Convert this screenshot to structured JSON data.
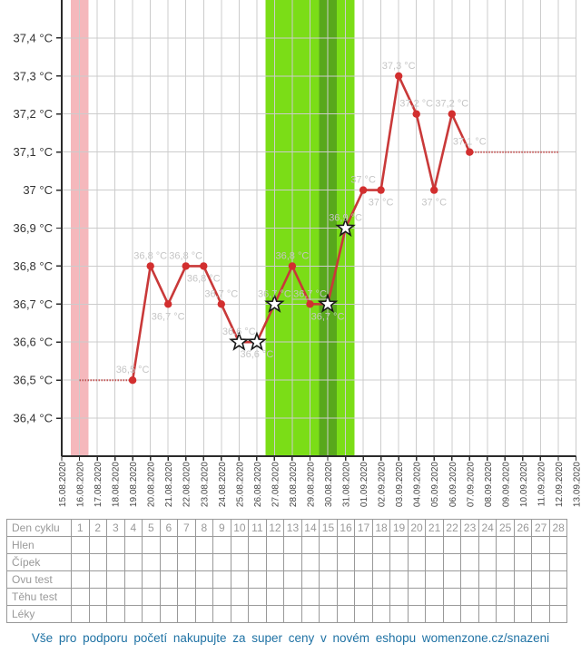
{
  "chart_data": {
    "type": "line",
    "title": "",
    "unit": "°C",
    "grid": true,
    "y_axis": {
      "min": 36.3,
      "max": 37.5,
      "ticks": [
        {
          "value": 37.4,
          "label": "37,4 °C"
        },
        {
          "value": 37.3,
          "label": "37,3 °C"
        },
        {
          "value": 37.2,
          "label": "37,2 °C"
        },
        {
          "value": 37.1,
          "label": "37,1 °C"
        },
        {
          "value": 37.0,
          "label": "37 °C"
        },
        {
          "value": 36.9,
          "label": "36,9 °C"
        },
        {
          "value": 36.8,
          "label": "36,8 °C"
        },
        {
          "value": 36.7,
          "label": "36,7 °C"
        },
        {
          "value": 36.6,
          "label": "36,6 °C"
        },
        {
          "value": 36.5,
          "label": "36,5 °C"
        },
        {
          "value": 36.4,
          "label": "36,4 °C"
        }
      ]
    },
    "x_axis": {
      "dates": [
        "15.08.2020",
        "16.08.2020",
        "17.08.2020",
        "18.08.2020",
        "19.08.2020",
        "20.08.2020",
        "21.08.2020",
        "22.08.2020",
        "23.08.2020",
        "24.08.2020",
        "25.08.2020",
        "26.08.2020",
        "27.08.2020",
        "28.08.2020",
        "29.08.2020",
        "30.08.2020",
        "31.08.2020",
        "01.09.2020",
        "02.09.2020",
        "03.09.2020",
        "04.09.2020",
        "05.09.2020",
        "06.09.2020",
        "07.09.2020",
        "08.09.2020",
        "09.09.2020",
        "10.09.2020",
        "11.09.2020",
        "12.09.2020",
        "13.09.2020"
      ]
    },
    "points": [
      {
        "date": "19.08.2020",
        "index": 4,
        "cycle_day": 4,
        "value": 36.5,
        "label": "36,5 °C",
        "marker": "dot",
        "label_pos": "above",
        "underline": false
      },
      {
        "date": "20.08.2020",
        "index": 5,
        "cycle_day": 5,
        "value": 36.8,
        "label": "36,8 °C",
        "marker": "dot",
        "label_pos": "above",
        "underline": false
      },
      {
        "date": "21.08.2020",
        "index": 6,
        "cycle_day": 6,
        "value": 36.7,
        "label": "36,7 °C",
        "marker": "dot",
        "label_pos": "below",
        "underline": false
      },
      {
        "date": "22.08.2020",
        "index": 7,
        "cycle_day": 7,
        "value": 36.8,
        "label": "36,8 °C",
        "marker": "dot",
        "label_pos": "above",
        "underline": false
      },
      {
        "date": "23.08.2020",
        "index": 8,
        "cycle_day": 8,
        "value": 36.8,
        "label": "36,8 °C",
        "marker": "dot",
        "label_pos": "below",
        "underline": false
      },
      {
        "date": "24.08.2020",
        "index": 9,
        "cycle_day": 9,
        "value": 36.7,
        "label": "36,7 °C",
        "marker": "dot",
        "label_pos": "above",
        "underline": false
      },
      {
        "date": "25.08.2020",
        "index": 10,
        "cycle_day": 10,
        "value": 36.6,
        "label": "36,6 °C",
        "marker": "star",
        "label_pos": "above",
        "underline": false
      },
      {
        "date": "26.08.2020",
        "index": 11,
        "cycle_day": 11,
        "value": 36.6,
        "label": "36,6 °C",
        "marker": "star",
        "label_pos": "below",
        "underline": false
      },
      {
        "date": "27.08.2020",
        "index": 12,
        "cycle_day": 12,
        "value": 36.7,
        "label": "36,7 °C",
        "marker": "star",
        "label_pos": "above",
        "underline": false
      },
      {
        "date": "28.08.2020",
        "index": 13,
        "cycle_day": 13,
        "value": 36.8,
        "label": "36,8 °C",
        "marker": "dot",
        "label_pos": "above",
        "underline": false
      },
      {
        "date": "29.08.2020",
        "index": 14,
        "cycle_day": 14,
        "value": 36.7,
        "label": "36,7 °C",
        "marker": "dot",
        "label_pos": "above",
        "underline": true
      },
      {
        "date": "30.08.2020",
        "index": 15,
        "cycle_day": 15,
        "value": 36.7,
        "label": "36,7 °C",
        "marker": "star",
        "label_pos": "below",
        "underline": false
      },
      {
        "date": "31.08.2020",
        "index": 16,
        "cycle_day": 16,
        "value": 36.9,
        "label": "36,9 °C",
        "marker": "star",
        "label_pos": "above",
        "underline": false
      },
      {
        "date": "01.09.2020",
        "index": 17,
        "cycle_day": 17,
        "value": 37.0,
        "label": "37 °C",
        "marker": "dot",
        "label_pos": "above",
        "underline": false
      },
      {
        "date": "02.09.2020",
        "index": 18,
        "cycle_day": 18,
        "value": 37.0,
        "label": "37 °C",
        "marker": "dot",
        "label_pos": "below",
        "underline": false
      },
      {
        "date": "03.09.2020",
        "index": 19,
        "cycle_day": 19,
        "value": 37.3,
        "label": "37,3 °C",
        "marker": "dot",
        "label_pos": "above",
        "underline": false
      },
      {
        "date": "04.09.2020",
        "index": 20,
        "cycle_day": 20,
        "value": 37.2,
        "label": "37,2 °C",
        "marker": "dot",
        "label_pos": "above",
        "underline": false
      },
      {
        "date": "05.09.2020",
        "index": 21,
        "cycle_day": 21,
        "value": 37.0,
        "label": "37 °C",
        "marker": "dot",
        "label_pos": "below",
        "underline": false
      },
      {
        "date": "06.09.2020",
        "index": 22,
        "cycle_day": 22,
        "value": 37.2,
        "label": "37,2 °C",
        "marker": "dot",
        "label_pos": "above",
        "underline": false
      },
      {
        "date": "07.09.2020",
        "index": 23,
        "cycle_day": 23,
        "value": 37.1,
        "label": "37,1 °C",
        "marker": "dot",
        "label_pos": "above",
        "underline": false
      }
    ],
    "pre_line": {
      "style": "dotted",
      "value": 36.5,
      "from_index": 1,
      "to_index": 4
    },
    "post_line": {
      "style": "dotted",
      "value": 37.1,
      "from_index": 23,
      "to_index": 28
    },
    "bands": [
      {
        "name": "menstruation",
        "from_index": 1,
        "to_index": 1,
        "color": "#f5b8bc"
      },
      {
        "name": "fertile-window",
        "from_index": 12,
        "to_index": 16,
        "color": "#7bdd17"
      },
      {
        "name": "ovulation-day",
        "from_index": 15,
        "to_index": 15,
        "color": "#58a81c"
      }
    ],
    "colors": {
      "line": "#c93939",
      "marker": "#d22f2f",
      "dotted_line": "#c14040",
      "grid": "#cccccc",
      "axis": "#2b2b2b",
      "axis_text": "#333333",
      "date_text": "#444444",
      "point_label": "#c5c5c5",
      "star_fill": "#ffffff",
      "star_stroke": "#1a1a1a"
    }
  },
  "table": {
    "header": {
      "label": "Den cyklu",
      "days": [
        "1",
        "2",
        "3",
        "4",
        "5",
        "6",
        "7",
        "8",
        "9",
        "10",
        "11",
        "12",
        "13",
        "14",
        "15",
        "16",
        "17",
        "18",
        "19",
        "20",
        "21",
        "22",
        "23",
        "24",
        "25",
        "26",
        "27",
        "28"
      ]
    },
    "rows": [
      {
        "label": "Hlen"
      },
      {
        "label": "Čípek"
      },
      {
        "label": "Ovu test"
      },
      {
        "label": "Těhu test"
      },
      {
        "label": "Léky"
      }
    ]
  },
  "footer": {
    "text": "Vše pro podporu početí nakupujte za super ceny v novém eshopu womenzone.cz/snazeni"
  }
}
